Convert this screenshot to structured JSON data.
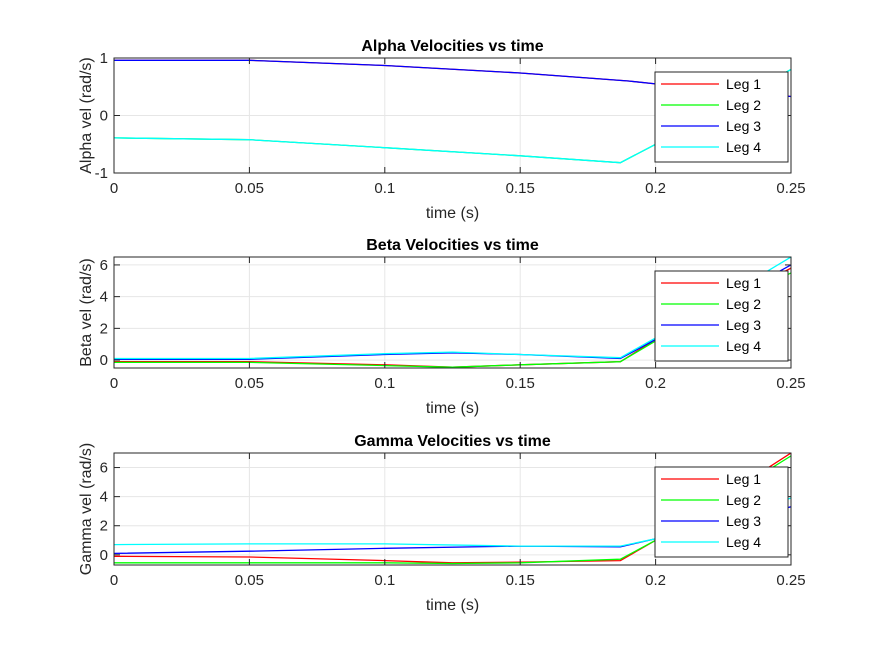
{
  "colors": {
    "leg1": "#ff0000",
    "leg2": "#00ff00",
    "leg3": "#0000ff",
    "leg4": "#00ffff",
    "axis": "#262626",
    "grid": "#e6e6e6"
  },
  "chart_data": [
    {
      "type": "line",
      "title": "Alpha Velocities vs time",
      "xlabel": "time (s)",
      "ylabel": "Alpha vel (rad/s)",
      "xlim": [
        0,
        0.25
      ],
      "ylim": [
        -1,
        1
      ],
      "xticks": [
        0,
        0.05,
        0.1,
        0.15,
        0.2,
        0.25
      ],
      "xtick_labels": [
        "0",
        "0.05",
        "0.1",
        "0.15",
        "0.2",
        "0.25"
      ],
      "yticks": [
        -1,
        0,
        1
      ],
      "ytick_labels": [
        "-1",
        "0",
        "1"
      ],
      "grid": true,
      "legend_position": "top-right",
      "series": [
        {
          "name": "Leg 1",
          "color": "#ff0000",
          "x": [
            0,
            0.05,
            0.1,
            0.15,
            0.19,
            0.2,
            0.25
          ],
          "y": [
            0.96,
            0.96,
            0.87,
            0.74,
            0.6,
            0.55,
            0.33
          ]
        },
        {
          "name": "Leg 2",
          "color": "#00ff00",
          "x": [
            0,
            0.05,
            0.1,
            0.15,
            0.187,
            0.2,
            0.25
          ],
          "y": [
            -0.39,
            -0.42,
            -0.56,
            -0.7,
            -0.82,
            -0.5,
            0.8
          ]
        },
        {
          "name": "Leg 3",
          "color": "#0000ff",
          "x": [
            0,
            0.05,
            0.1,
            0.15,
            0.19,
            0.2,
            0.25
          ],
          "y": [
            0.96,
            0.96,
            0.87,
            0.74,
            0.6,
            0.55,
            0.33
          ]
        },
        {
          "name": "Leg 4",
          "color": "#00ffff",
          "x": [
            0,
            0.05,
            0.1,
            0.15,
            0.187,
            0.2,
            0.25
          ],
          "y": [
            -0.39,
            -0.42,
            -0.56,
            -0.7,
            -0.82,
            -0.5,
            0.8
          ]
        }
      ]
    },
    {
      "type": "line",
      "title": "Beta Velocities vs time",
      "xlabel": "time (s)",
      "ylabel": "Beta vel (rad/s)",
      "xlim": [
        0,
        0.25
      ],
      "ylim": [
        -0.5,
        6.5
      ],
      "xticks": [
        0,
        0.05,
        0.1,
        0.15,
        0.2,
        0.25
      ],
      "xtick_labels": [
        "0",
        "0.05",
        "0.1",
        "0.15",
        "0.2",
        "0.25"
      ],
      "yticks": [
        0,
        2,
        4,
        6
      ],
      "ytick_labels": [
        "0",
        "2",
        "4",
        "6"
      ],
      "grid": true,
      "legend_position": "top-right",
      "series": [
        {
          "name": "Leg 1",
          "color": "#ff0000",
          "x": [
            0,
            0.05,
            0.1,
            0.125,
            0.15,
            0.187,
            0.2,
            0.25
          ],
          "y": [
            -0.1,
            -0.1,
            -0.3,
            -0.45,
            -0.3,
            -0.1,
            1.3,
            5.8
          ]
        },
        {
          "name": "Leg 2",
          "color": "#00ff00",
          "x": [
            0,
            0.05,
            0.1,
            0.125,
            0.15,
            0.187,
            0.2,
            0.25
          ],
          "y": [
            -0.15,
            -0.15,
            -0.35,
            -0.45,
            -0.3,
            -0.1,
            1.2,
            5.5
          ]
        },
        {
          "name": "Leg 3",
          "color": "#0000ff",
          "x": [
            0,
            0.05,
            0.1,
            0.125,
            0.15,
            0.187,
            0.2,
            0.25
          ],
          "y": [
            0.05,
            0.05,
            0.35,
            0.45,
            0.35,
            0.1,
            1.3,
            6.0
          ]
        },
        {
          "name": "Leg 4",
          "color": "#00ffff",
          "x": [
            0,
            0.05,
            0.1,
            0.125,
            0.15,
            0.187,
            0.2,
            0.25
          ],
          "y": [
            0.1,
            0.1,
            0.4,
            0.5,
            0.35,
            0.15,
            1.4,
            6.5
          ]
        }
      ]
    },
    {
      "type": "line",
      "title": "Gamma Velocities vs time",
      "xlabel": "time (s)",
      "ylabel": "Gamma vel (rad/s)",
      "xlim": [
        0,
        0.25
      ],
      "ylim": [
        -0.7,
        7
      ],
      "xticks": [
        0,
        0.05,
        0.1,
        0.15,
        0.2,
        0.25
      ],
      "xtick_labels": [
        "0",
        "0.05",
        "0.1",
        "0.15",
        "0.2",
        "0.25"
      ],
      "yticks": [
        0,
        2,
        4,
        6
      ],
      "ytick_labels": [
        "0",
        "2",
        "4",
        "6"
      ],
      "grid": true,
      "legend_position": "top-right",
      "series": [
        {
          "name": "Leg 1",
          "color": "#ff0000",
          "x": [
            0,
            0.05,
            0.1,
            0.125,
            0.15,
            0.187,
            0.2,
            0.25
          ],
          "y": [
            -0.1,
            -0.15,
            -0.4,
            -0.55,
            -0.5,
            -0.4,
            1.0,
            7.0
          ]
        },
        {
          "name": "Leg 2",
          "color": "#00ff00",
          "x": [
            0,
            0.05,
            0.1,
            0.125,
            0.15,
            0.187,
            0.2,
            0.25
          ],
          "y": [
            -0.55,
            -0.55,
            -0.55,
            -0.6,
            -0.55,
            -0.3,
            1.0,
            6.8
          ]
        },
        {
          "name": "Leg 3",
          "color": "#0000ff",
          "x": [
            0,
            0.05,
            0.1,
            0.15,
            0.187,
            0.2,
            0.25
          ],
          "y": [
            0.1,
            0.25,
            0.45,
            0.6,
            0.55,
            1.1,
            3.3
          ]
        },
        {
          "name": "Leg 4",
          "color": "#00ffff",
          "x": [
            0,
            0.05,
            0.1,
            0.15,
            0.187,
            0.2,
            0.25
          ],
          "y": [
            0.7,
            0.75,
            0.75,
            0.6,
            0.6,
            1.1,
            3.9
          ]
        }
      ]
    }
  ]
}
